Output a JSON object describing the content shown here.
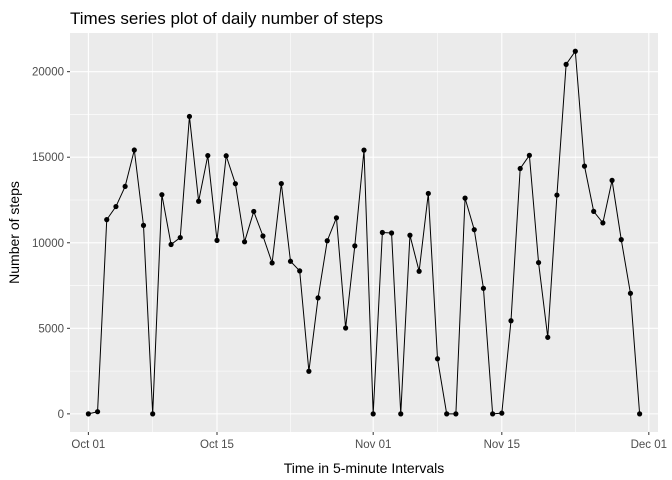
{
  "chart_data": {
    "type": "line",
    "title": "Times series plot of daily number of steps",
    "xlabel": "Time in 5-minute Intervals",
    "ylabel": "Number of steps",
    "x_range": [
      "2012-09-29",
      "2012-12-02"
    ],
    "ylim": [
      -1060,
      22260
    ],
    "x_ticks": [
      {
        "date": "2012-10-01",
        "label": "Oct 01"
      },
      {
        "date": "2012-10-15",
        "label": "Oct 15"
      },
      {
        "date": "2012-11-01",
        "label": "Nov 01"
      },
      {
        "date": "2012-11-15",
        "label": "Nov 15"
      },
      {
        "date": "2012-12-01",
        "label": "Dec 01"
      }
    ],
    "y_ticks": [
      0,
      5000,
      10000,
      15000,
      20000
    ],
    "grid": true,
    "background": "#ebebeb",
    "gridline_color": "#ffffff",
    "line_color": "#000000",
    "point_color": "#000000",
    "series": [
      {
        "x": [
          "2012-10-01",
          "2012-10-02",
          "2012-10-03",
          "2012-10-04",
          "2012-10-05",
          "2012-10-06",
          "2012-10-07",
          "2012-10-08",
          "2012-10-09",
          "2012-10-10",
          "2012-10-11",
          "2012-10-12",
          "2012-10-13",
          "2012-10-14",
          "2012-10-15",
          "2012-10-16",
          "2012-10-17",
          "2012-10-18",
          "2012-10-19",
          "2012-10-20",
          "2012-10-21",
          "2012-10-22",
          "2012-10-23",
          "2012-10-24",
          "2012-10-25",
          "2012-10-26",
          "2012-10-27",
          "2012-10-28",
          "2012-10-29",
          "2012-10-30",
          "2012-10-31",
          "2012-11-01",
          "2012-11-02",
          "2012-11-03",
          "2012-11-04",
          "2012-11-05",
          "2012-11-06",
          "2012-11-07",
          "2012-11-08",
          "2012-11-09",
          "2012-11-10",
          "2012-11-11",
          "2012-11-12",
          "2012-11-13",
          "2012-11-14",
          "2012-11-15",
          "2012-11-16",
          "2012-11-17",
          "2012-11-18",
          "2012-11-19",
          "2012-11-20",
          "2012-11-21",
          "2012-11-22",
          "2012-11-23",
          "2012-11-24",
          "2012-11-25",
          "2012-11-26",
          "2012-11-27",
          "2012-11-28",
          "2012-11-29",
          "2012-11-30"
        ],
        "values": [
          0,
          126,
          11352,
          12116,
          13294,
          15420,
          11015,
          0,
          12811,
          9900,
          10304,
          17382,
          12426,
          15098,
          10139,
          15084,
          13452,
          10056,
          11829,
          10395,
          8821,
          13460,
          8918,
          8355,
          2492,
          6778,
          10119,
          11458,
          5018,
          9819,
          15414,
          0,
          10600,
          10571,
          0,
          10439,
          8334,
          12883,
          3219,
          0,
          0,
          12608,
          10765,
          7336,
          0,
          41,
          5441,
          14339,
          15110,
          8841,
          4472,
          12787,
          20427,
          21194,
          14478,
          11834,
          11162,
          13646,
          10183,
          7047,
          0
        ]
      }
    ]
  }
}
